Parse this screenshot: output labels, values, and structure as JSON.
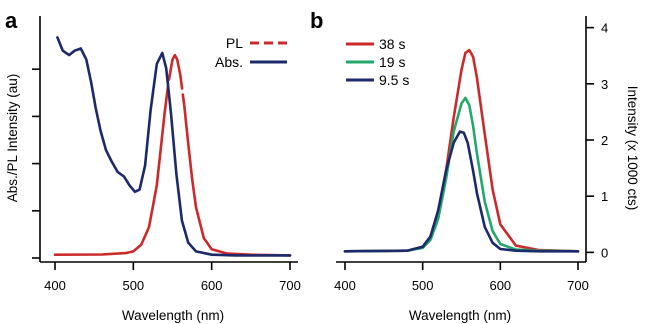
{
  "chart_data": [
    {
      "panel": "a",
      "type": "line",
      "xlabel": "Wavelength (nm)",
      "ylabel": "Abs./PL Intensity (au)",
      "xlim": [
        400,
        700
      ],
      "xticks": [
        "400",
        "500",
        "600",
        "700"
      ],
      "ylim": [
        0,
        1.07
      ],
      "y_tick_labels_shown": false,
      "legend_position": "top-right",
      "series": [
        {
          "name": "PL",
          "color": "#cc2a2a",
          "style": "solid, dashed in legend, visible gaps on flanks",
          "x": [
            400,
            460,
            490,
            500,
            510,
            520,
            530,
            540,
            545,
            550,
            553,
            556,
            560,
            565,
            570,
            575,
            580,
            590,
            600,
            620,
            650,
            700
          ],
          "y": [
            0.015,
            0.016,
            0.022,
            0.03,
            0.06,
            0.14,
            0.33,
            0.66,
            0.8,
            0.9,
            0.92,
            0.9,
            0.83,
            0.69,
            0.52,
            0.36,
            0.23,
            0.09,
            0.04,
            0.02,
            0.015,
            0.012
          ]
        },
        {
          "name": "Abs.",
          "color": "#1c2a6b",
          "style": "solid",
          "x": [
            403,
            410,
            418,
            425,
            433,
            440,
            446,
            452,
            458,
            465,
            472,
            480,
            488,
            495,
            502,
            508,
            515,
            522,
            530,
            537,
            542,
            548,
            555,
            562,
            570,
            580,
            600,
            630,
            660,
            700
          ],
          "y": [
            1.0,
            0.94,
            0.92,
            0.94,
            0.95,
            0.9,
            0.8,
            0.68,
            0.58,
            0.49,
            0.44,
            0.39,
            0.37,
            0.33,
            0.3,
            0.31,
            0.42,
            0.67,
            0.88,
            0.93,
            0.86,
            0.66,
            0.38,
            0.17,
            0.07,
            0.03,
            0.015,
            0.012,
            0.012,
            0.012
          ]
        }
      ]
    },
    {
      "panel": "b",
      "type": "line",
      "xlabel": "Wavelength (nm)",
      "ylabel": "Intensity (x 1000 cts)",
      "xlim": [
        400,
        700
      ],
      "xticks": [
        "400",
        "500",
        "600",
        "700"
      ],
      "ylim": [
        -0.1,
        4.1
      ],
      "yticks": [
        "0",
        "1",
        "2",
        "3",
        "4"
      ],
      "y_axis_side": "right",
      "legend_position": "top-left",
      "series": [
        {
          "name": "38 s",
          "color": "#cc2a2a",
          "x": [
            400,
            480,
            500,
            510,
            520,
            530,
            540,
            550,
            555,
            560,
            565,
            570,
            580,
            590,
            600,
            620,
            650,
            700
          ],
          "y": [
            0.02,
            0.03,
            0.1,
            0.28,
            0.7,
            1.45,
            2.4,
            3.25,
            3.55,
            3.6,
            3.48,
            3.1,
            2.1,
            1.12,
            0.5,
            0.12,
            0.04,
            0.02
          ]
        },
        {
          "name": "19 s",
          "color": "#22a86a",
          "x": [
            400,
            480,
            500,
            510,
            520,
            530,
            540,
            550,
            555,
            560,
            565,
            570,
            580,
            590,
            600,
            620,
            650,
            700
          ],
          "y": [
            0.02,
            0.03,
            0.08,
            0.22,
            0.6,
            1.3,
            2.15,
            2.65,
            2.75,
            2.62,
            2.25,
            1.75,
            0.9,
            0.38,
            0.15,
            0.05,
            0.03,
            0.02
          ]
        },
        {
          "name": "9.5 s",
          "color": "#1c2a6b",
          "x": [
            400,
            480,
            500,
            510,
            520,
            530,
            540,
            548,
            553,
            558,
            565,
            570,
            580,
            590,
            600,
            620,
            650,
            700
          ],
          "y": [
            0.02,
            0.03,
            0.1,
            0.28,
            0.75,
            1.45,
            1.95,
            2.15,
            2.13,
            1.95,
            1.45,
            1.05,
            0.45,
            0.17,
            0.06,
            0.03,
            0.02,
            0.02
          ]
        }
      ]
    }
  ]
}
